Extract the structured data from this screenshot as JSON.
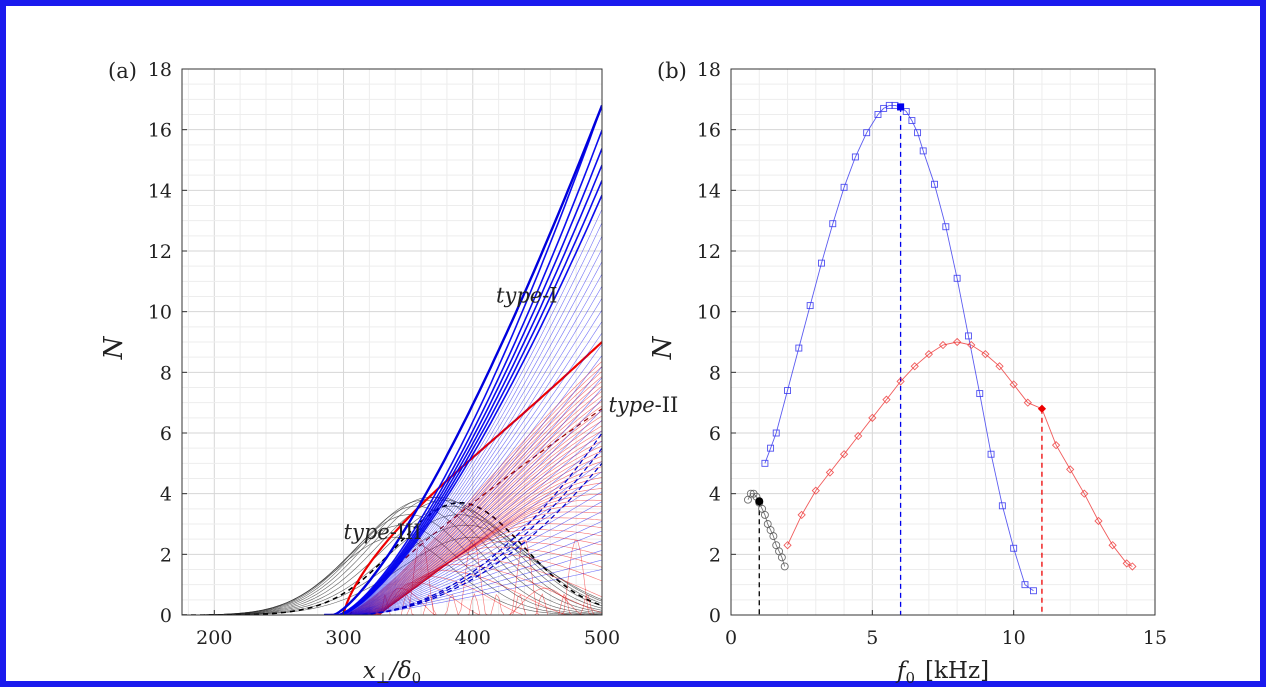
{
  "chart_data": [
    {
      "panel_label": "(a)",
      "type": "line",
      "xlabel_main": "x",
      "xlabel_sub": "⊥",
      "xlabel_div": "/δ",
      "xlabel_div_sub": "0",
      "ylabel": "N",
      "xlim": [
        175,
        500
      ],
      "ylim": [
        0,
        18
      ],
      "xticks": [
        200,
        300,
        400,
        500
      ],
      "yticks": [
        0,
        2,
        4,
        6,
        8,
        10,
        12,
        14,
        16,
        18
      ],
      "grid": true,
      "colors": {
        "type_I": "#0000ee",
        "type_II": "#ee0000",
        "type_III": "#222222"
      },
      "annotations": [
        {
          "italic": "type",
          "roman": "-I",
          "color": "#1a1aee",
          "x": 418,
          "y": 10.3
        },
        {
          "italic": "type",
          "roman": "-II",
          "color": "#ee0000",
          "x": 505,
          "y": 6.7
        },
        {
          "italic": "type",
          "roman": "-III",
          "color": "#222222",
          "x": 300,
          "y": 2.5
        }
      ],
      "families": {
        "type_I": {
          "description_onset_x": 300,
          "end_N_max": 16.8,
          "end_N_min": 1.5,
          "count": 40
        },
        "type_II": {
          "description_onset_x": 300,
          "end_N_max": 9.0,
          "end_N_min": 0.5,
          "count": 45
        },
        "type_III": {
          "onset_x": 190,
          "peak_x_range": [
            340,
            400
          ],
          "peak_N_max": 3.9,
          "count": 12
        }
      }
    },
    {
      "panel_label": "(b)",
      "type": "scatter-line",
      "xlabel_main": "f",
      "xlabel_sub": "0",
      "xlabel_unit": "[kHz]",
      "ylabel": "N",
      "xlim": [
        0,
        15
      ],
      "ylim": [
        0,
        18
      ],
      "xticks": [
        0,
        5,
        10,
        15
      ],
      "yticks": [
        0,
        2,
        4,
        6,
        8,
        10,
        12,
        14,
        16,
        18
      ],
      "grid": true,
      "series": [
        {
          "family": "type_I",
          "color": "#3333ee",
          "marker": "square",
          "x": [
            1.2,
            1.4,
            1.6,
            2.0,
            2.4,
            2.8,
            3.2,
            3.6,
            4.0,
            4.4,
            4.8,
            5.2,
            5.4,
            5.6,
            5.8,
            6.0,
            6.2,
            6.4,
            6.6,
            6.8,
            7.2,
            7.6,
            8.0,
            8.4,
            8.8,
            9.2,
            9.6,
            10.0,
            10.4,
            10.7
          ],
          "y": [
            5.0,
            5.5,
            6.0,
            7.4,
            8.8,
            10.2,
            11.6,
            12.9,
            14.1,
            15.1,
            15.9,
            16.5,
            16.7,
            16.8,
            16.8,
            16.75,
            16.6,
            16.3,
            15.9,
            15.3,
            14.2,
            12.8,
            11.1,
            9.2,
            7.3,
            5.3,
            3.6,
            2.2,
            1.0,
            0.8
          ]
        },
        {
          "family": "type_II",
          "color": "#ee3333",
          "marker": "diamond",
          "x": [
            2.0,
            2.5,
            3.0,
            3.5,
            4.0,
            4.5,
            5.0,
            5.5,
            6.0,
            6.5,
            7.0,
            7.5,
            8.0,
            8.5,
            9.0,
            9.5,
            10.0,
            10.5,
            11.0,
            11.5,
            12.0,
            12.5,
            13.0,
            13.5,
            14.0,
            14.2
          ],
          "y": [
            2.3,
            3.3,
            4.1,
            4.7,
            5.3,
            5.9,
            6.5,
            7.1,
            7.7,
            8.2,
            8.6,
            8.9,
            9.0,
            8.9,
            8.6,
            8.2,
            7.6,
            7.0,
            6.8,
            5.6,
            4.8,
            4.0,
            3.1,
            2.3,
            1.7,
            1.6
          ]
        },
        {
          "family": "type_III",
          "color": "#555555",
          "marker": "circle",
          "x": [
            0.6,
            0.7,
            0.8,
            0.9,
            1.0,
            1.1,
            1.2,
            1.3,
            1.4,
            1.5,
            1.6,
            1.7,
            1.8,
            1.9
          ],
          "y": [
            3.8,
            4.0,
            4.0,
            3.9,
            3.7,
            3.5,
            3.3,
            3.0,
            2.8,
            2.6,
            2.3,
            2.1,
            1.9,
            1.6
          ]
        }
      ],
      "highlighted_points": [
        {
          "family": "type_I",
          "x": 6.0,
          "y": 16.75,
          "color": "#0000ee"
        },
        {
          "family": "type_II",
          "x": 11.0,
          "y": 6.8,
          "color": "#ee0000"
        },
        {
          "family": "type_III",
          "x": 1.0,
          "y": 3.75,
          "color": "#000000"
        }
      ]
    }
  ]
}
